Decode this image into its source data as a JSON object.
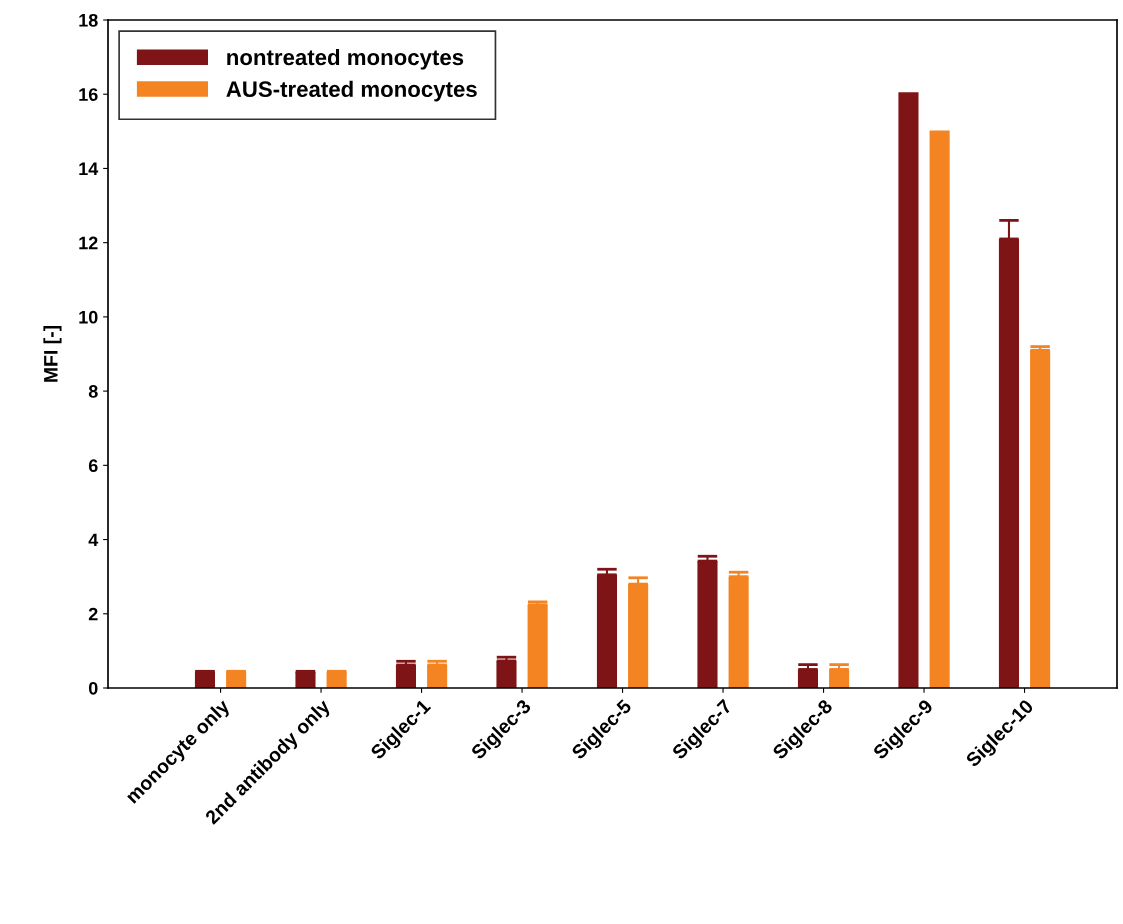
{
  "chart_data": {
    "type": "bar",
    "ylabel": "MFI [-]",
    "categories": [
      "monocyte only",
      "2nd antibody only",
      "Siglec-1",
      "Siglec-3",
      "Siglec-5",
      "Siglec-7",
      "Siglec-8",
      "Siglec-9",
      "Siglec-10"
    ],
    "series": [
      {
        "name": "nontreated monocytes",
        "color": "#7f1416",
        "values": [
          0.43,
          0.43,
          0.62,
          0.73,
          3.05,
          3.42,
          0.5,
          16.05,
          12.1
        ],
        "errors": [
          0.02,
          0.02,
          0.1,
          0.1,
          0.15,
          0.13,
          0.13,
          null,
          0.5
        ]
      },
      {
        "name": "AUS-treated monocytes",
        "color": "#f48322",
        "values": [
          0.43,
          0.43,
          0.62,
          2.24,
          2.8,
          3.0,
          0.5,
          15.02,
          9.1
        ],
        "errors": [
          0.02,
          0.02,
          0.1,
          0.08,
          0.17,
          0.12,
          0.13,
          null,
          0.1
        ]
      }
    ],
    "ylim": [
      0,
      18
    ],
    "yticks": [
      0,
      2,
      4,
      6,
      8,
      10,
      12,
      14,
      16,
      18
    ],
    "grid": false,
    "legend": "top left"
  }
}
